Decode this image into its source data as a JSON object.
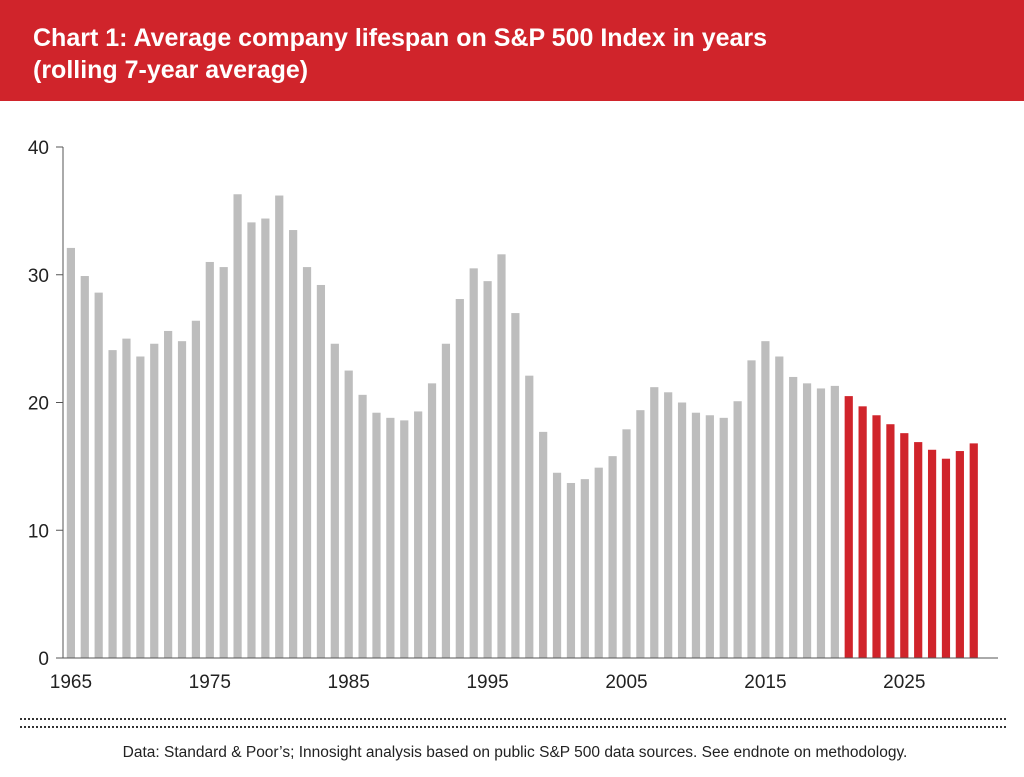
{
  "chart_data": {
    "type": "bar",
    "title": "Chart 1: Average company lifespan on S&P 500 Index in years",
    "subtitle": "(rolling 7-year average)",
    "xlabel": "",
    "ylabel": "",
    "ylim": [
      0,
      40
    ],
    "yticks": [
      0,
      10,
      20,
      30,
      40
    ],
    "xticks": [
      1965,
      1975,
      1985,
      1995,
      2005,
      2015,
      2025
    ],
    "x_start": 1965,
    "x_end": 2030,
    "forecast_start": 2021,
    "colors": {
      "historical": "#bdbdbd",
      "forecast": "#d0242b"
    },
    "categories": [
      1965,
      1966,
      1967,
      1968,
      1969,
      1970,
      1971,
      1972,
      1973,
      1974,
      1975,
      1976,
      1977,
      1978,
      1979,
      1980,
      1981,
      1982,
      1983,
      1984,
      1985,
      1986,
      1987,
      1988,
      1989,
      1990,
      1991,
      1992,
      1993,
      1994,
      1995,
      1996,
      1997,
      1998,
      1999,
      2000,
      2001,
      2002,
      2003,
      2004,
      2005,
      2006,
      2007,
      2008,
      2009,
      2010,
      2011,
      2012,
      2013,
      2014,
      2015,
      2016,
      2017,
      2018,
      2019,
      2020,
      2021,
      2022,
      2023,
      2024,
      2025,
      2026,
      2027,
      2028,
      2029,
      2030
    ],
    "values": [
      32.1,
      29.9,
      28.6,
      24.1,
      25.0,
      23.6,
      24.6,
      25.6,
      24.8,
      26.4,
      31.0,
      30.6,
      36.3,
      34.1,
      34.4,
      36.2,
      33.5,
      30.6,
      29.2,
      24.6,
      22.5,
      20.6,
      19.2,
      18.8,
      18.6,
      19.3,
      21.5,
      24.6,
      28.1,
      30.5,
      29.5,
      31.6,
      27.0,
      22.1,
      17.7,
      14.5,
      13.7,
      14.0,
      14.9,
      15.8,
      17.9,
      19.4,
      21.2,
      20.8,
      20.0,
      19.2,
      19.0,
      18.8,
      20.1,
      23.3,
      24.8,
      23.6,
      22.0,
      21.5,
      21.1,
      21.3,
      20.5,
      19.7,
      19.0,
      18.3,
      17.6,
      16.9,
      16.3,
      15.6,
      16.2,
      16.8
    ]
  },
  "footer": {
    "source": "Data: Standard & Poor’s; Innosight analysis based on public S&P 500 data sources. See endnote on methodology."
  }
}
